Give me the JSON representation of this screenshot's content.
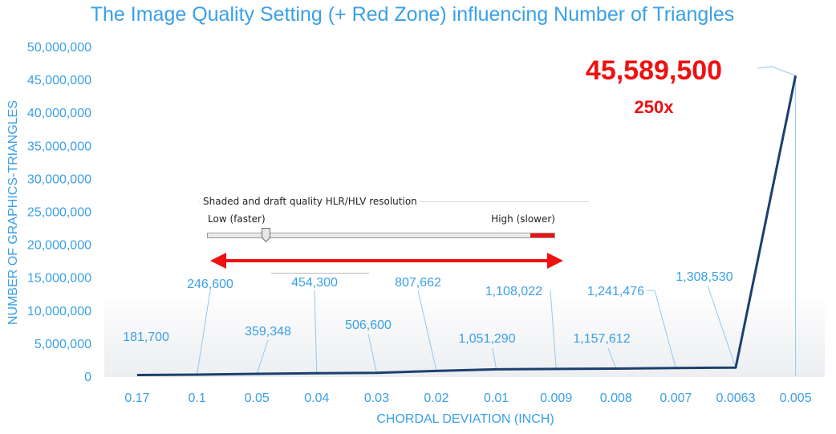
{
  "chart_data": {
    "type": "line",
    "title": "The Image Quality Setting (+ Red Zone) influencing Number of Triangles",
    "xlabel": "CHORDAL DEVIATION (INCH)",
    "ylabel": "NUMBER OF GRAPHICS-TRIANGLES",
    "categories": [
      "0.17",
      "0.1",
      "0.05",
      "0.04",
      "0.03",
      "0.02",
      "0.01",
      "0.009",
      "0.008",
      "0.007",
      "0.0063",
      "0.005"
    ],
    "values": [
      181700,
      246600,
      359348,
      454300,
      506600,
      807662,
      1051290,
      1108022,
      1157612,
      1241476,
      1308530,
      45589500
    ],
    "data_labels": [
      "181,700",
      "246,600",
      "359,348",
      "454,300",
      "506,600",
      "807,662",
      "1,051,290",
      "1,108,022",
      "1,157,612",
      "1,241,476",
      "1,308,530",
      "45,589,500"
    ],
    "ylim": [
      0,
      50000000
    ],
    "yticks": [
      0,
      5000000,
      10000000,
      15000000,
      20000000,
      25000000,
      30000000,
      35000000,
      40000000,
      45000000,
      50000000
    ],
    "ytick_labels": [
      "0",
      "5,000,000",
      "10,000,000",
      "15,000,000",
      "20,000,000",
      "25,000,000",
      "30,000,000",
      "35,000,000",
      "40,000,000",
      "45,000,000",
      "50,000,000"
    ],
    "annotation_factor": "250x",
    "grid": false,
    "legend": "none",
    "colors": {
      "line": "#1c3f6e",
      "text": "#3aa0e6",
      "leader": "#8ecbf0",
      "highlight": "#ee1111"
    }
  },
  "inset": {
    "title": "Shaded and draft quality HLR/HLV resolution",
    "low_label": "Low (faster)",
    "high_label": "High (slower)",
    "slider_position": 0.17
  }
}
